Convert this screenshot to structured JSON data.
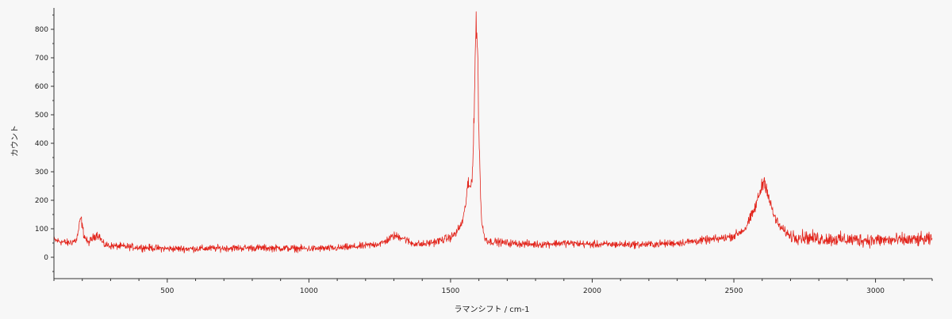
{
  "chart_data": {
    "type": "line",
    "title": "",
    "xlabel": "ラマンシフト / cm-1",
    "ylabel": "カウント",
    "xlim": [
      100,
      3200
    ],
    "ylim": [
      -75,
      875
    ],
    "x_ticks": [
      500,
      1000,
      1500,
      2000,
      2500,
      3000
    ],
    "y_ticks": [
      0,
      100,
      200,
      300,
      400,
      500,
      600,
      700,
      800
    ],
    "grid": false,
    "legend": "none",
    "colors": {
      "line": "#e2231a",
      "axis": "#333333",
      "background": "#f7f7f7"
    },
    "series": [
      {
        "x": [
          100,
          150,
          180,
          195,
          205,
          220,
          250,
          260,
          275,
          300,
          400,
          500,
          600,
          700,
          800,
          900,
          1000,
          1100,
          1200,
          1260,
          1300,
          1330,
          1360,
          1400,
          1450,
          1500,
          1520,
          1540,
          1550,
          1560,
          1570,
          1575,
          1580,
          1585,
          1588,
          1592,
          1596,
          1600,
          1605,
          1610,
          1620,
          1635,
          1650,
          1700,
          1800,
          1900,
          2000,
          2100,
          2200,
          2300,
          2400,
          2450,
          2500,
          2540,
          2570,
          2590,
          2605,
          2615,
          2625,
          2640,
          2660,
          2680,
          2700,
          2750,
          2800,
          2900,
          3000,
          3100,
          3200
        ],
        "y": [
          60,
          50,
          60,
          140,
          80,
          50,
          80,
          75,
          45,
          40,
          35,
          30,
          30,
          32,
          33,
          32,
          30,
          32,
          40,
          50,
          75,
          70,
          50,
          45,
          55,
          70,
          85,
          120,
          160,
          250,
          245,
          270,
          380,
          580,
          780,
          800,
          700,
          450,
          250,
          120,
          70,
          55,
          55,
          50,
          45,
          50,
          45,
          45,
          45,
          50,
          60,
          65,
          75,
          100,
          160,
          220,
          270,
          250,
          200,
          150,
          110,
          90,
          75,
          70,
          65,
          62,
          60,
          60,
          62
        ]
      }
    ]
  }
}
